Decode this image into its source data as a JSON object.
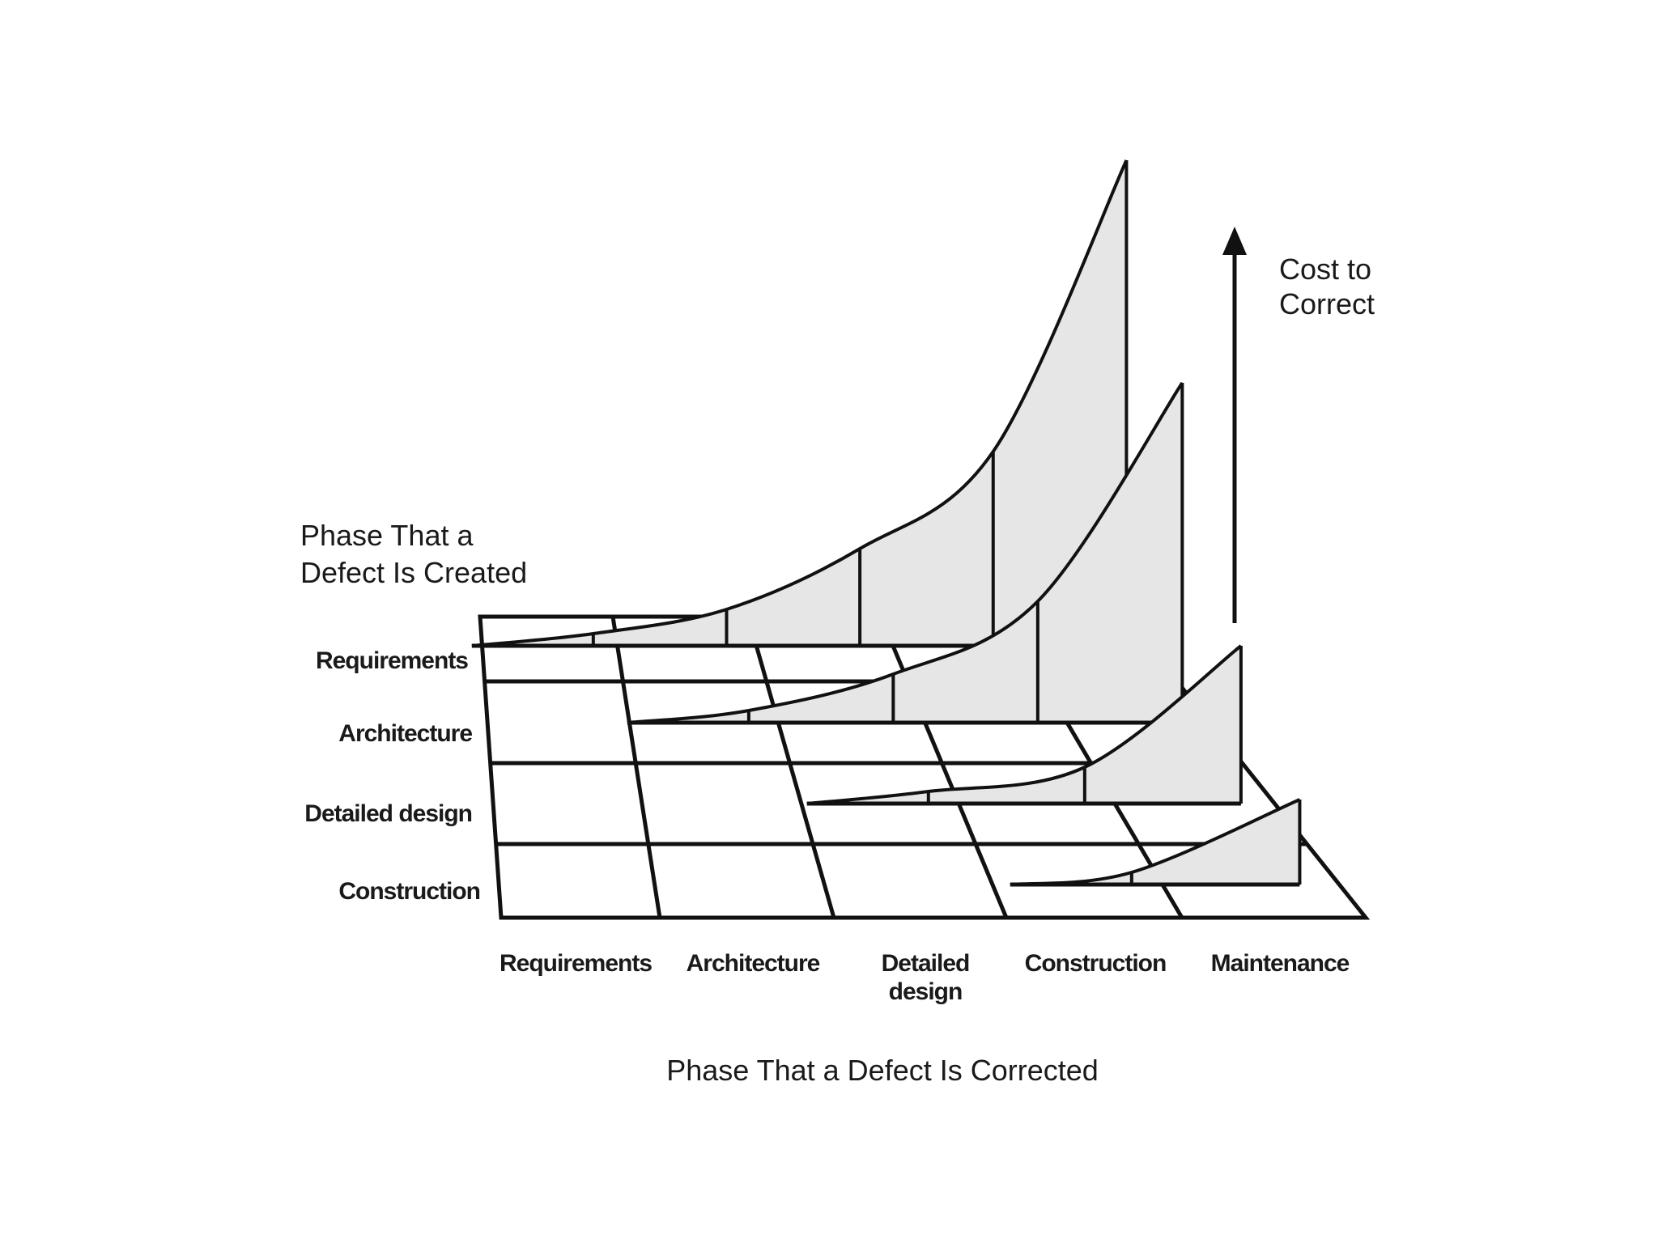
{
  "chart_data": {
    "type": "area",
    "title": "",
    "created_axis_label": [
      "Phase That a",
      "Defect Is Created"
    ],
    "corrected_axis_label": "Phase That a Defect Is Corrected",
    "cost_axis_label": [
      "Cost to",
      "Correct"
    ],
    "created_phases": [
      "Requirements",
      "Architecture",
      "Detailed design",
      "Construction"
    ],
    "corrected_phases": [
      [
        "Requirements"
      ],
      [
        "Architecture"
      ],
      [
        "Detailed",
        "design"
      ],
      [
        "Construction"
      ],
      [
        "Maintenance"
      ]
    ],
    "series": [
      {
        "name": "Requirements",
        "values": [
          1,
          3,
          8,
          16,
          40
        ]
      },
      {
        "name": "Architecture",
        "values": [
          null,
          1,
          4,
          10,
          28
        ]
      },
      {
        "name": "Detailed design",
        "values": [
          null,
          null,
          1,
          3,
          13
        ]
      },
      {
        "name": "Construction",
        "values": [
          null,
          null,
          null,
          1,
          7
        ]
      }
    ],
    "grid": true,
    "colors": {
      "fill": "#e6e6e6",
      "stroke": "#111111"
    }
  }
}
